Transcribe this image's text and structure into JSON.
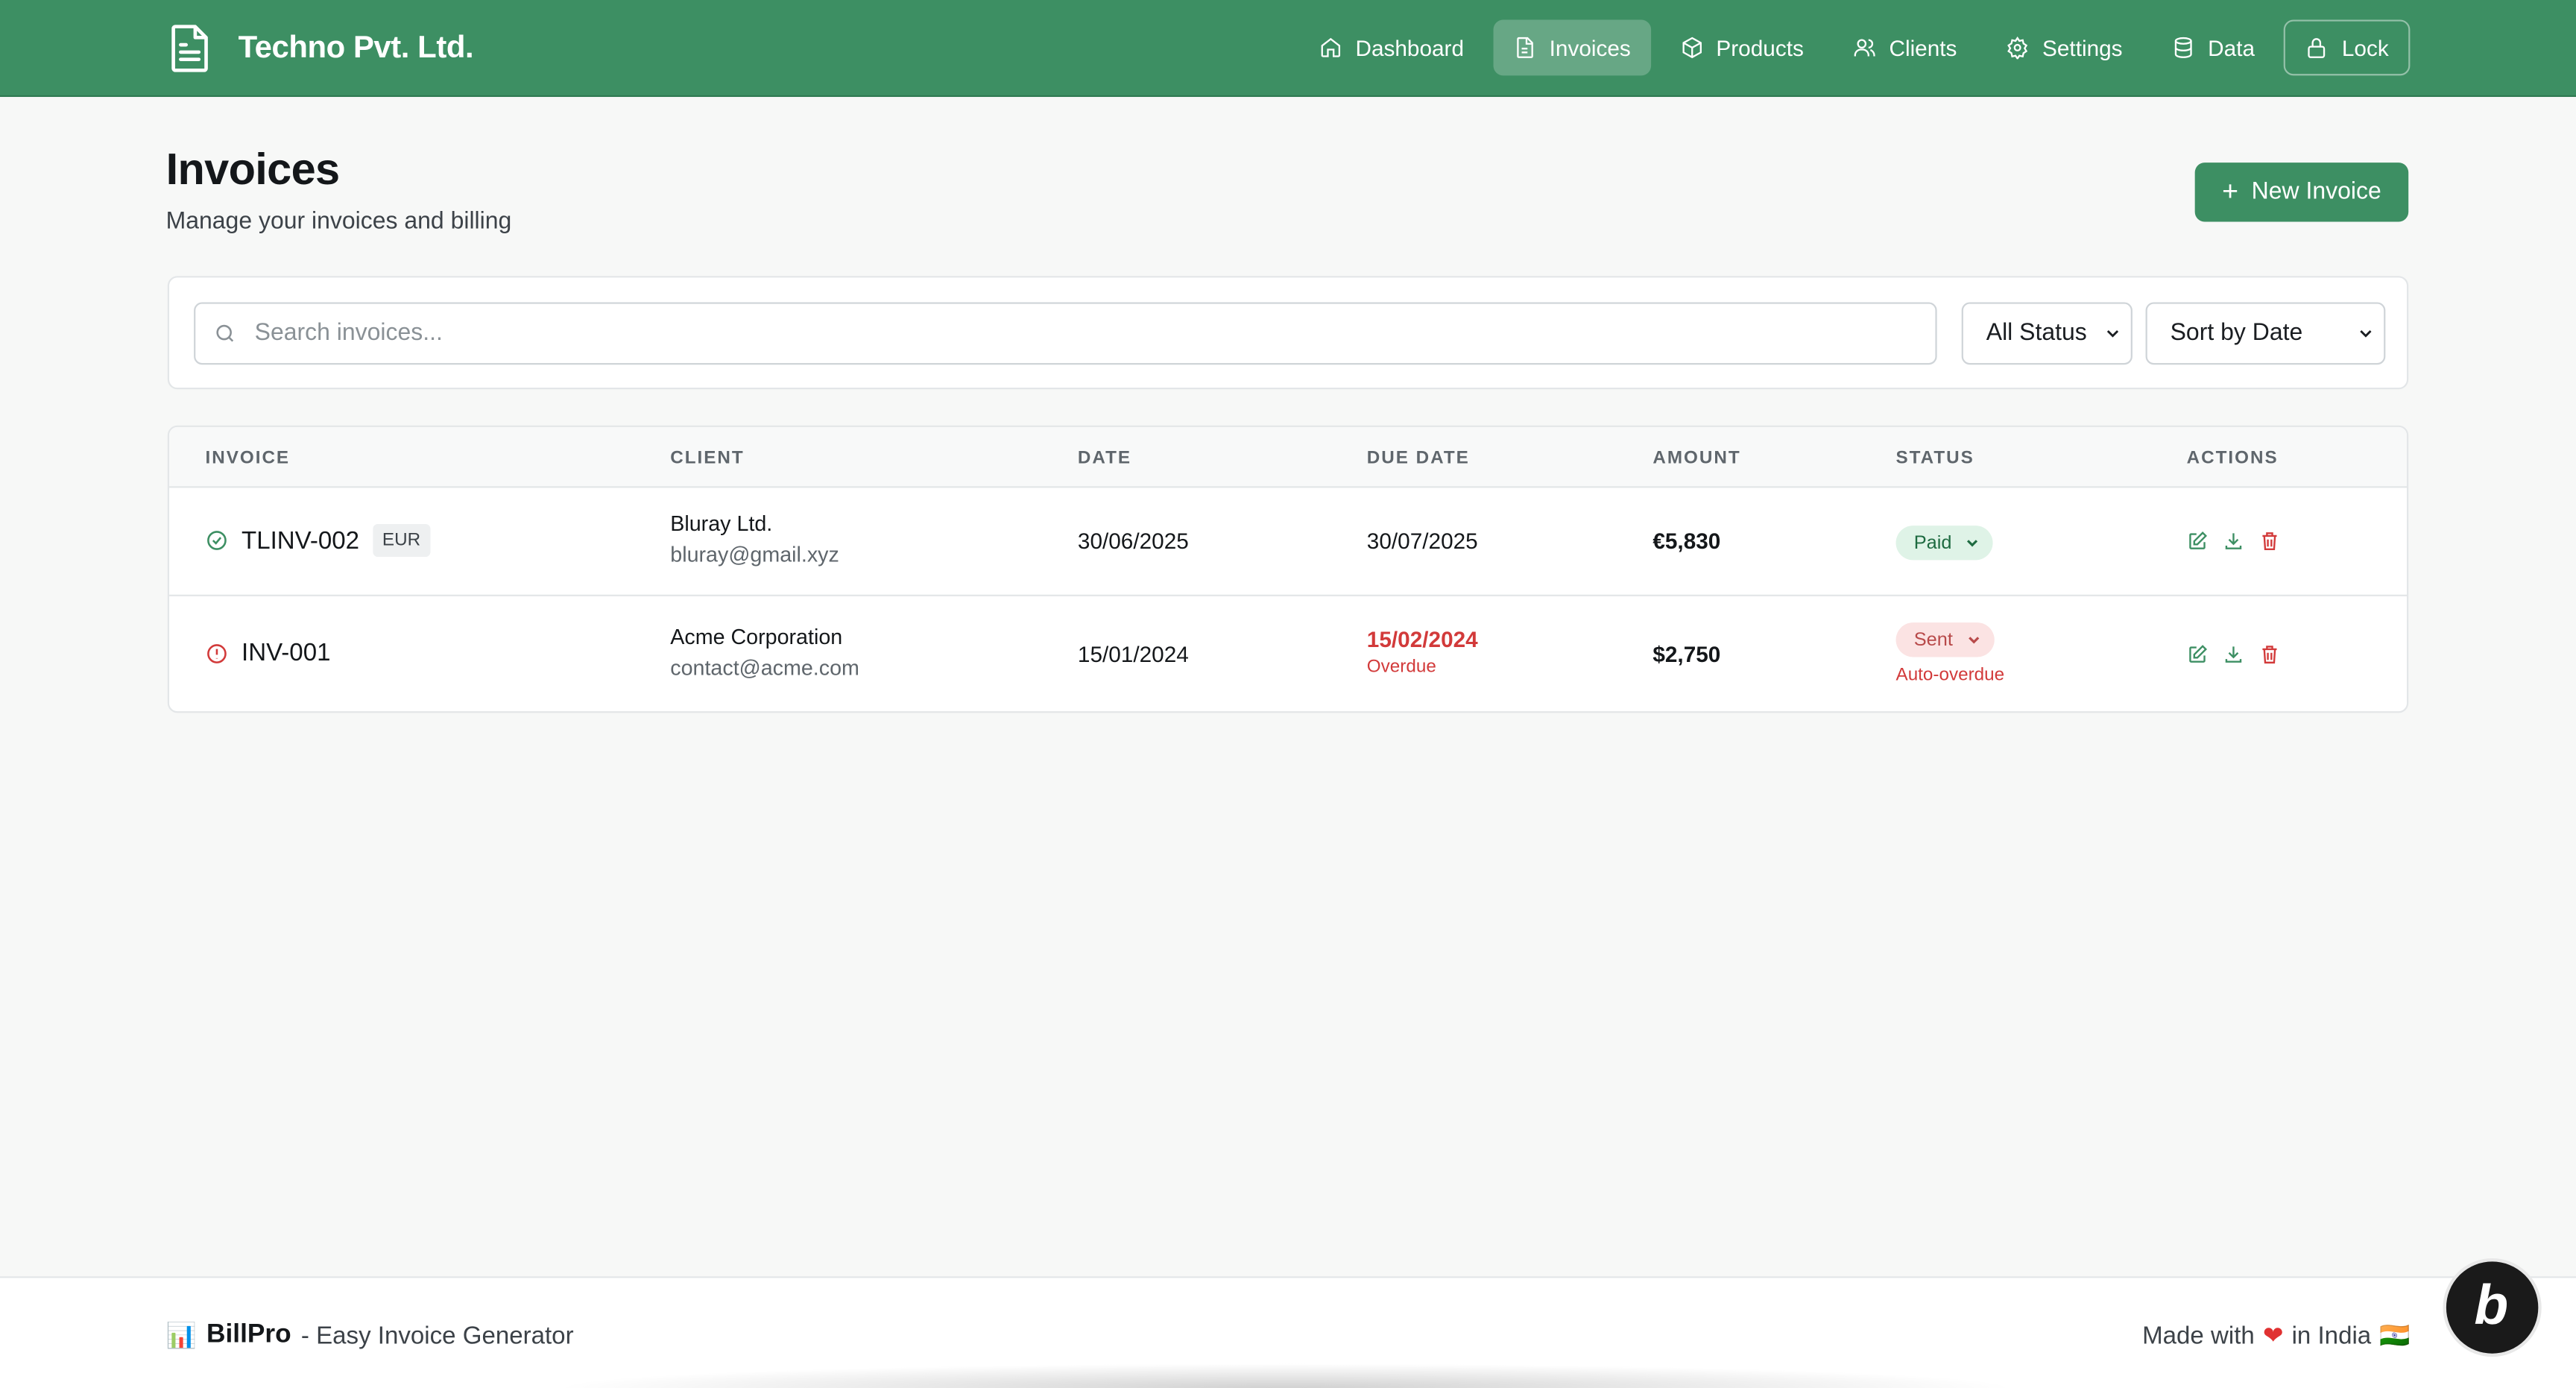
{
  "header": {
    "brand": "Techno Pvt. Ltd.",
    "nav": [
      {
        "label": "Dashboard",
        "icon": "home-icon"
      },
      {
        "label": "Invoices",
        "icon": "file-icon",
        "active": true
      },
      {
        "label": "Products",
        "icon": "box-icon"
      },
      {
        "label": "Clients",
        "icon": "users-icon"
      },
      {
        "label": "Settings",
        "icon": "gear-icon"
      },
      {
        "label": "Data",
        "icon": "database-icon"
      },
      {
        "label": "Lock",
        "icon": "lock-icon"
      }
    ]
  },
  "page": {
    "title": "Invoices",
    "subtitle": "Manage your invoices and billing",
    "new_button": "New Invoice"
  },
  "filters": {
    "search_placeholder": "Search invoices...",
    "status_value": "All Status",
    "sort_value": "Sort by Date"
  },
  "table": {
    "columns": [
      "INVOICE",
      "CLIENT",
      "DATE",
      "DUE DATE",
      "AMOUNT",
      "STATUS",
      "ACTIONS"
    ],
    "rows": [
      {
        "id": "TLINV-002",
        "currency": "EUR",
        "client_name": "Bluray Ltd.",
        "client_email": "bluray@gmail.xyz",
        "date": "30/06/2025",
        "due_date": "30/07/2025",
        "amount": "€5,830",
        "status": "Paid"
      },
      {
        "id": "INV-001",
        "client_name": "Acme Corporation",
        "client_email": "contact@acme.com",
        "date": "15/01/2024",
        "due_date": "15/02/2024",
        "due_note": "Overdue",
        "amount": "$2,750",
        "status": "Sent",
        "status_note": "Auto-overdue"
      }
    ]
  },
  "footer": {
    "logo": "BillPro",
    "tagline": "- Easy Invoice Generator",
    "made_with": "Made with",
    "in_country": "in India",
    "flag": "🇮🇳"
  },
  "colors": {
    "brand": "#3d8f63",
    "danger": "#d23a3a",
    "paid_bg": "#dff3e7",
    "sent_bg": "#fbe3e3"
  }
}
